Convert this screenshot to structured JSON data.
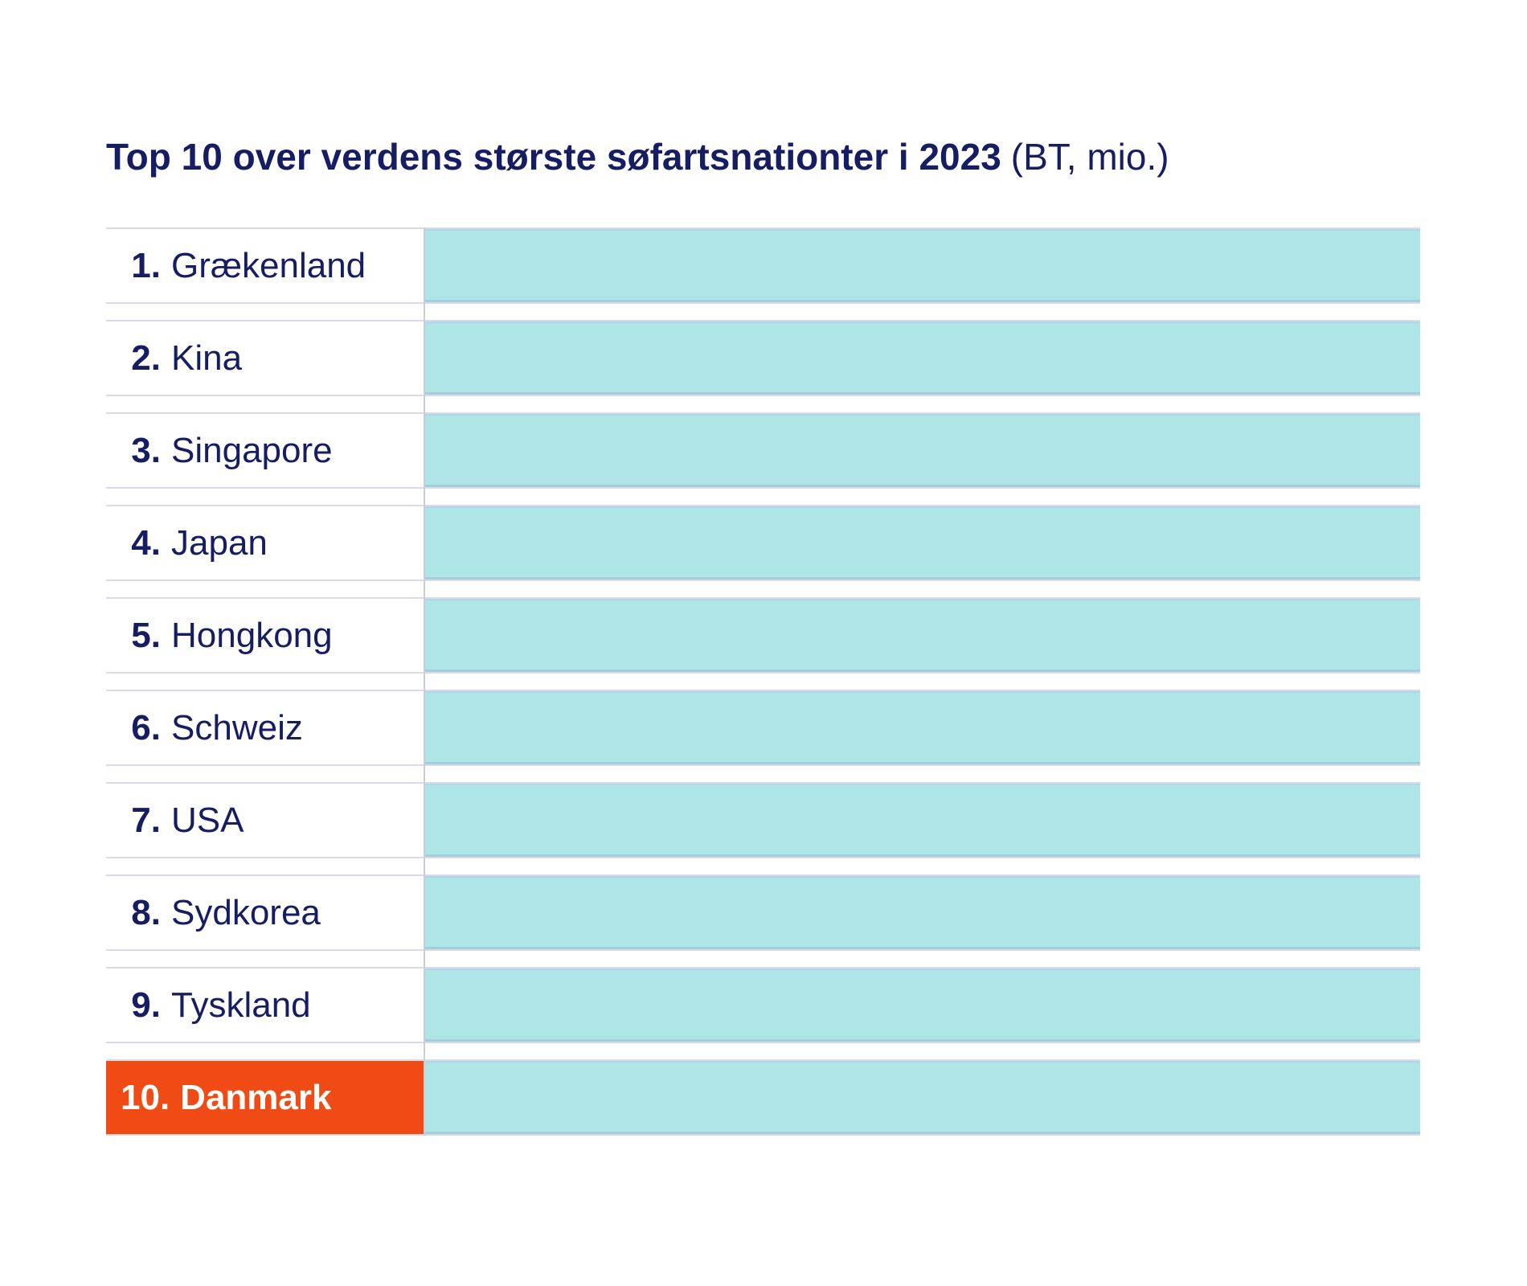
{
  "title": {
    "main": "Top 10 over verdens største søfartsnationter i 2023",
    "unit": "(BT, mio.)"
  },
  "colors": {
    "navy": "#171d63",
    "teal": "#aee6e8",
    "orange": "#f04a15",
    "row_border": "#d9dbe9",
    "divider": "#c8cdd9",
    "bar_edge": "#9fc7da"
  },
  "chart_data": {
    "type": "bar",
    "orientation": "horizontal",
    "title": "Top 10 over verdens største søfartsnationter i 2023",
    "unit_label": "(BT, mio.)",
    "value_labels_visible": false,
    "bars_equal_display_length": true,
    "highlight_category": "Danmark",
    "rows": [
      {
        "rank": "1.",
        "label": "Grækenland",
        "bar_fraction": 1,
        "highlight": false
      },
      {
        "rank": "2.",
        "label": "Kina",
        "bar_fraction": 1,
        "highlight": false
      },
      {
        "rank": "3.",
        "label": "Singapore",
        "bar_fraction": 1,
        "highlight": false
      },
      {
        "rank": "4.",
        "label": "Japan",
        "bar_fraction": 1,
        "highlight": false
      },
      {
        "rank": "5.",
        "label": "Hongkong",
        "bar_fraction": 1,
        "highlight": false
      },
      {
        "rank": "6.",
        "label": "Schweiz",
        "bar_fraction": 1,
        "highlight": false
      },
      {
        "rank": "7.",
        "label": "USA",
        "bar_fraction": 1,
        "highlight": false
      },
      {
        "rank": "8.",
        "label": "Sydkorea",
        "bar_fraction": 1,
        "highlight": false
      },
      {
        "rank": "9.",
        "label": "Tyskland",
        "bar_fraction": 1,
        "highlight": false
      },
      {
        "rank": "10.",
        "label": "Danmark",
        "bar_fraction": 1,
        "highlight": true
      }
    ]
  }
}
